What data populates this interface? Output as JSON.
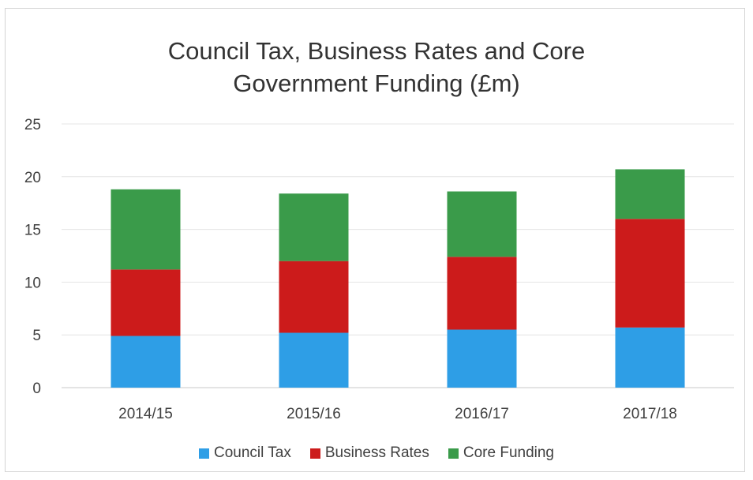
{
  "chart_data": {
    "type": "bar",
    "stacked": true,
    "title": "Council Tax, Business Rates and Core Government Funding (£m)",
    "title_lines": [
      "Council Tax, Business Rates and Core",
      "Government Funding (£m)"
    ],
    "categories": [
      "2014/15",
      "2015/16",
      "2016/17",
      "2017/18"
    ],
    "series": [
      {
        "name": "Council Tax",
        "color": "#2e9ee6",
        "values": [
          4.9,
          5.2,
          5.5,
          5.7
        ]
      },
      {
        "name": "Business Rates",
        "color": "#cc1b1b",
        "values": [
          6.3,
          6.8,
          6.9,
          10.3
        ]
      },
      {
        "name": "Core Funding",
        "color": "#3a9b4a",
        "values": [
          7.6,
          6.4,
          6.2,
          4.7
        ]
      }
    ],
    "ylim": [
      0,
      25
    ],
    "yticks": [
      0,
      5,
      10,
      15,
      20,
      25
    ],
    "grid": true,
    "legend": "bottom"
  }
}
